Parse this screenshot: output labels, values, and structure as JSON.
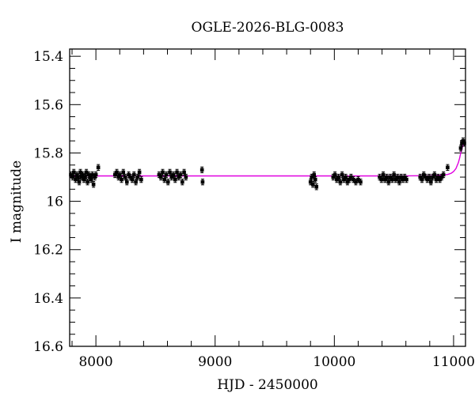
{
  "chart_data": {
    "type": "scatter",
    "title": "OGLE-2026-BLG-0083",
    "xlabel": "HJD - 2450000",
    "ylabel": "I magnitude",
    "xlim": [
      7780,
      11100
    ],
    "ylim": [
      16.6,
      15.37
    ],
    "y_inverted": true,
    "grid": false,
    "legend": "none",
    "x_major_ticks": [
      8000,
      9000,
      10000,
      11000
    ],
    "x_tick_labels": [
      "8000",
      "9000",
      "10000",
      "11000"
    ],
    "x_minor_step": 200,
    "y_major_ticks": [
      15.4,
      15.6,
      15.8,
      16.0,
      16.2,
      16.4,
      16.6
    ],
    "y_tick_labels": [
      "15.4",
      "15.6",
      "15.8",
      "16",
      "16.2",
      "16.4",
      "16.6"
    ],
    "y_minor_step": 0.05,
    "colors": {
      "points": "#000000",
      "model": "#e000e0",
      "axes": "#000000"
    },
    "series": [
      {
        "kind": "points",
        "marker": "filled-square-with-errorbars",
        "x": [
          7790,
          7805,
          7815,
          7830,
          7840,
          7850,
          7860,
          7870,
          7880,
          7890,
          7900,
          7910,
          7920,
          7930,
          7940,
          7950,
          7960,
          7970,
          7980,
          7990,
          8000,
          8020,
          8160,
          8175,
          8190,
          8200,
          8215,
          8230,
          8245,
          8260,
          8275,
          8290,
          8305,
          8320,
          8335,
          8350,
          8365,
          8380,
          8530,
          8545,
          8560,
          8575,
          8590,
          8605,
          8620,
          8635,
          8650,
          8665,
          8680,
          8695,
          8710,
          8725,
          8740,
          8755,
          8890,
          8895,
          9800,
          9810,
          9820,
          9830,
          9840,
          9850,
          9990,
          10005,
          10020,
          10035,
          10050,
          10065,
          10080,
          10095,
          10110,
          10125,
          10140,
          10160,
          10180,
          10200,
          10220,
          10380,
          10395,
          10410,
          10425,
          10440,
          10455,
          10470,
          10485,
          10500,
          10515,
          10530,
          10545,
          10560,
          10575,
          10590,
          10605,
          10720,
          10735,
          10750,
          10765,
          10780,
          10795,
          10810,
          10825,
          10840,
          10855,
          10870,
          10885,
          10900,
          10915,
          10950,
          11060,
          11070,
          11080,
          11090
        ],
        "y": [
          15.89,
          15.9,
          15.88,
          15.91,
          15.89,
          15.9,
          15.92,
          15.88,
          15.9,
          15.89,
          15.91,
          15.9,
          15.88,
          15.92,
          15.89,
          15.9,
          15.91,
          15.89,
          15.93,
          15.9,
          15.89,
          15.86,
          15.89,
          15.88,
          15.9,
          15.89,
          15.91,
          15.88,
          15.9,
          15.92,
          15.89,
          15.9,
          15.91,
          15.89,
          15.92,
          15.9,
          15.88,
          15.91,
          15.89,
          15.9,
          15.88,
          15.91,
          15.89,
          15.92,
          15.88,
          15.9,
          15.89,
          15.91,
          15.88,
          15.9,
          15.89,
          15.92,
          15.88,
          15.9,
          15.87,
          15.92,
          15.92,
          15.9,
          15.93,
          15.89,
          15.91,
          15.94,
          15.9,
          15.89,
          15.91,
          15.9,
          15.92,
          15.89,
          15.91,
          15.9,
          15.92,
          15.91,
          15.9,
          15.91,
          15.92,
          15.91,
          15.92,
          15.9,
          15.91,
          15.89,
          15.91,
          15.9,
          15.92,
          15.9,
          15.91,
          15.89,
          15.91,
          15.9,
          15.92,
          15.9,
          15.91,
          15.9,
          15.91,
          15.9,
          15.91,
          15.89,
          15.9,
          15.91,
          15.9,
          15.92,
          15.9,
          15.89,
          15.91,
          15.9,
          15.91,
          15.9,
          15.89,
          15.86,
          15.78,
          15.76,
          15.75,
          15.76
        ],
        "yerr": 0.012
      },
      {
        "kind": "model-curve",
        "x": [
          7780,
          8500,
          9000,
          9500,
          10000,
          10500,
          10800,
          10900,
          10950,
          10980,
          11000,
          11020,
          11040,
          11050,
          11060,
          11070,
          11080,
          11090,
          11100
        ],
        "y": [
          15.895,
          15.895,
          15.895,
          15.895,
          15.895,
          15.895,
          15.894,
          15.892,
          15.889,
          15.884,
          15.877,
          15.864,
          15.84,
          15.822,
          15.8,
          15.782,
          15.768,
          15.76,
          15.755
        ]
      }
    ]
  }
}
